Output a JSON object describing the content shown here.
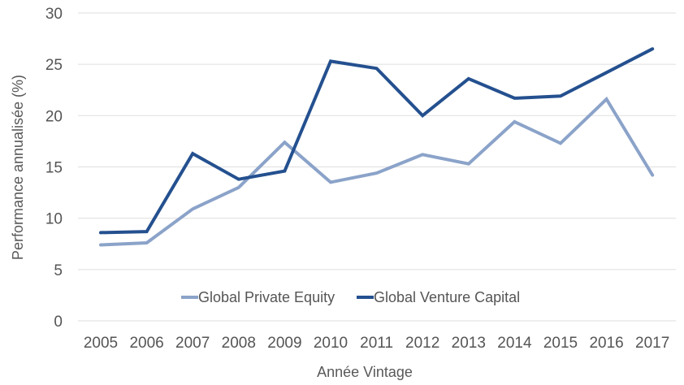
{
  "chart_data": {
    "type": "line",
    "title": "",
    "xlabel": "Année Vintage",
    "ylabel": "Performance annualisée (%)",
    "ylim": [
      0,
      30
    ],
    "y_ticks": [
      "0",
      "5",
      "10",
      "15",
      "20",
      "25",
      "30"
    ],
    "y_tick_values": [
      0,
      5,
      10,
      15,
      20,
      25,
      30
    ],
    "grid": true,
    "legend_position": "bottom-inside",
    "categories": [
      "2005",
      "2006",
      "2007",
      "2008",
      "2009",
      "2010",
      "2011",
      "2012",
      "2013",
      "2014",
      "2015",
      "2016",
      "2017"
    ],
    "series": [
      {
        "name": "Global Private Equity",
        "color": "#8ba3c9",
        "values": [
          7.4,
          7.6,
          10.9,
          13.0,
          17.4,
          13.5,
          14.4,
          16.2,
          15.3,
          19.4,
          17.3,
          21.6,
          14.2
        ]
      },
      {
        "name": "Global Venture Capital",
        "color": "#24508f",
        "values": [
          8.6,
          8.7,
          16.3,
          13.8,
          14.6,
          25.3,
          24.6,
          20.0,
          23.6,
          21.7,
          21.9,
          24.2,
          26.5
        ]
      }
    ]
  }
}
